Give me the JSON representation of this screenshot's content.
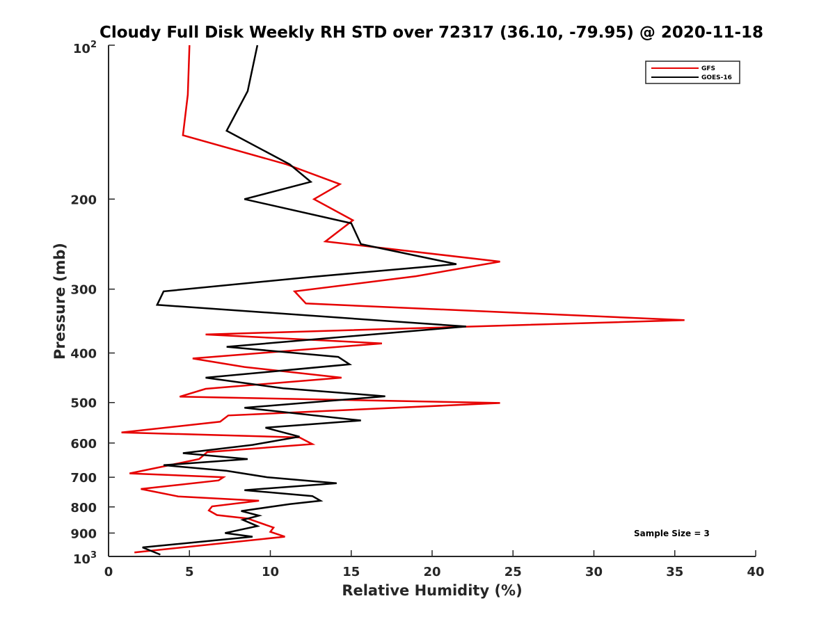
{
  "colors": {
    "GFS": "#e60000",
    "GOES-16": "#000000",
    "axis": "#262626"
  },
  "chart_data": {
    "type": "line",
    "title": "Cloudy Full Disk Weekly RH STD over 72317 (36.10, -79.95) @ 2020-11-18",
    "xlabel": "Relative Humidity (%)",
    "ylabel": "Pressure (mb)",
    "xlim": [
      0,
      40
    ],
    "ylim": [
      100,
      1000
    ],
    "yscale": "log",
    "yreversed": true,
    "grid": false,
    "legend_position": "top-right",
    "x_ticks": [
      0,
      5,
      10,
      15,
      20,
      25,
      30,
      35,
      40
    ],
    "x_tick_labels": [
      "0",
      "5",
      "10",
      "15",
      "20",
      "25",
      "30",
      "35",
      "40"
    ],
    "y_ticks": [
      200,
      300,
      400,
      500,
      600,
      700,
      800,
      900
    ],
    "y_tick_labels": [
      "200",
      "300",
      "400",
      "500",
      "600",
      "700",
      "800",
      "900"
    ],
    "y_tick_top": {
      "base": "10",
      "exp": "2"
    },
    "y_tick_bottom": {
      "base": "10",
      "exp": "3"
    },
    "annotation": "Sample Size = 3",
    "series": [
      {
        "name": "GFS",
        "color": "#e60000",
        "points": [
          [
            5.0,
            100
          ],
          [
            4.9,
            125
          ],
          [
            4.6,
            150
          ],
          [
            11.0,
            171
          ],
          [
            14.3,
            187
          ],
          [
            12.7,
            200
          ],
          [
            15.1,
            220
          ],
          [
            13.4,
            242
          ],
          [
            24.2,
            265
          ],
          [
            19.0,
            283
          ],
          [
            11.5,
            303
          ],
          [
            12.2,
            320
          ],
          [
            35.6,
            345
          ],
          [
            6.0,
            368
          ],
          [
            16.9,
            383
          ],
          [
            5.2,
            410
          ],
          [
            8.4,
            426
          ],
          [
            14.4,
            447
          ],
          [
            6.0,
            470
          ],
          [
            4.4,
            487
          ],
          [
            24.2,
            501
          ],
          [
            7.4,
            530
          ],
          [
            6.9,
            545
          ],
          [
            0.8,
            572
          ],
          [
            11.8,
            585
          ],
          [
            12.6,
            603
          ],
          [
            6.1,
            625
          ],
          [
            5.6,
            645
          ],
          [
            1.3,
            688
          ],
          [
            7.1,
            700
          ],
          [
            6.8,
            710
          ],
          [
            2.0,
            738
          ],
          [
            4.3,
            763
          ],
          [
            9.3,
            778
          ],
          [
            6.4,
            798
          ],
          [
            6.2,
            813
          ],
          [
            6.7,
            830
          ],
          [
            8.6,
            843
          ],
          [
            10.2,
            878
          ],
          [
            10.0,
            895
          ],
          [
            10.9,
            915
          ],
          [
            1.6,
            982
          ]
        ]
      },
      {
        "name": "GOES-16",
        "color": "#000000",
        "points": [
          [
            9.2,
            100
          ],
          [
            8.6,
            123
          ],
          [
            7.3,
            147
          ],
          [
            11.2,
            171
          ],
          [
            12.5,
            185
          ],
          [
            8.4,
            200
          ],
          [
            15.0,
            223
          ],
          [
            15.6,
            245
          ],
          [
            21.5,
            268
          ],
          [
            12.5,
            284
          ],
          [
            3.4,
            303
          ],
          [
            3.0,
            322
          ],
          [
            22.1,
            355
          ],
          [
            7.3,
            389
          ],
          [
            14.2,
            407
          ],
          [
            14.9,
            421
          ],
          [
            6.0,
            447
          ],
          [
            10.8,
            469
          ],
          [
            17.1,
            486
          ],
          [
            8.4,
            512
          ],
          [
            15.6,
            542
          ],
          [
            9.7,
            560
          ],
          [
            11.8,
            583
          ],
          [
            8.9,
            605
          ],
          [
            4.6,
            628
          ],
          [
            8.6,
            645
          ],
          [
            3.4,
            663
          ],
          [
            7.3,
            680
          ],
          [
            9.8,
            700
          ],
          [
            14.1,
            719
          ],
          [
            8.4,
            742
          ],
          [
            12.6,
            762
          ],
          [
            13.1,
            778
          ],
          [
            11.2,
            790
          ],
          [
            8.2,
            815
          ],
          [
            9.3,
            832
          ],
          [
            8.3,
            848
          ],
          [
            9.2,
            872
          ],
          [
            7.2,
            900
          ],
          [
            8.9,
            915
          ],
          [
            2.1,
            960
          ],
          [
            3.2,
            992
          ]
        ]
      }
    ]
  }
}
